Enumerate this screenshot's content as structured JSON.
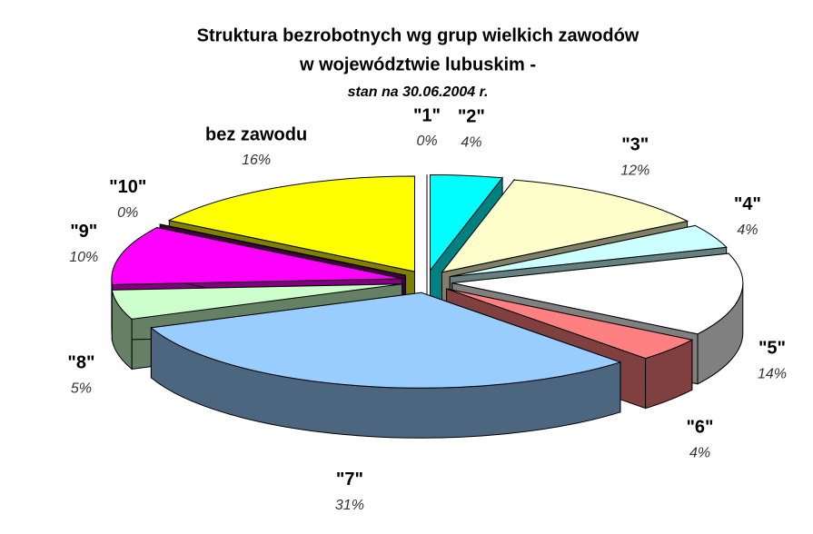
{
  "chart_data": {
    "type": "pie3d",
    "title": [
      "Struktura bezrobotnych wg grup wielkich zawodów",
      "w województwie lubuskim -"
    ],
    "subtitle": "stan na  30.06.2004 r.",
    "categories": [
      "\"1\"",
      "\"2\"",
      "\"3\"",
      "\"4\"",
      "\"5\"",
      "\"6\"",
      "\"7\"",
      "\"8\"",
      "\"9\"",
      "\"10\"",
      "bez zawodu"
    ],
    "values": [
      0,
      4,
      12,
      4,
      14,
      4,
      31,
      5,
      10,
      0,
      16
    ],
    "value_labels": [
      "0%",
      "4%",
      "12%",
      "4%",
      "14%",
      "4%",
      "31%",
      "5%",
      "10%",
      "0%",
      "16%"
    ],
    "colors": [
      "#9999ff",
      "#00ffff",
      "#ffffcc",
      "#ccffff",
      "#ffffff",
      "#ff8080",
      "#99ccff",
      "#ccffcc",
      "#ff00ff",
      "#800080",
      "#ffff00"
    ]
  }
}
